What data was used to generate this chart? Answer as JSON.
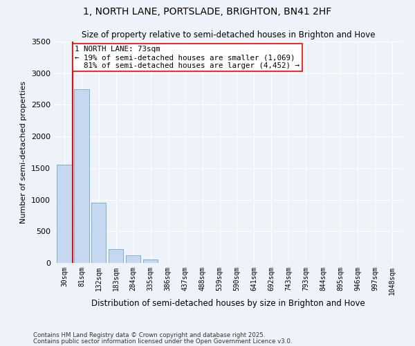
{
  "title1": "1, NORTH LANE, PORTSLADE, BRIGHTON, BN41 2HF",
  "title2": "Size of property relative to semi-detached houses in Brighton and Hove",
  "xlabel": "Distribution of semi-detached houses by size in Brighton and Hove",
  "ylabel": "Number of semi-detached properties",
  "categories": [
    "30sqm",
    "81sqm",
    "132sqm",
    "183sqm",
    "284sqm",
    "335sqm",
    "386sqm",
    "437sqm",
    "488sqm",
    "539sqm",
    "590sqm",
    "641sqm",
    "692sqm",
    "743sqm",
    "793sqm",
    "844sqm",
    "895sqm",
    "946sqm",
    "997sqm",
    "1048sqm"
  ],
  "bar_values": [
    1550,
    2750,
    950,
    220,
    115,
    55,
    0,
    0,
    0,
    0,
    0,
    0,
    0,
    0,
    0,
    0,
    0,
    0,
    0,
    0
  ],
  "bar_color": "#c5d8f0",
  "bar_edge_color": "#7aafd4",
  "annotation_line1": "1 NORTH LANE: 73sqm",
  "annotation_line2": "← 19% of semi-detached houses are smaller (1,069)",
  "annotation_line3": "  81% of semi-detached houses are larger (4,452) →",
  "vline_bin": 1,
  "ylim": [
    0,
    3500
  ],
  "yticks": [
    0,
    500,
    1000,
    1500,
    2000,
    2500,
    3000,
    3500
  ],
  "footnote1": "Contains HM Land Registry data © Crown copyright and database right 2025.",
  "footnote2": "Contains public sector information licensed under the Open Government Licence v3.0.",
  "bg_color": "#eef2f9",
  "grid_color": "#ffffff"
}
